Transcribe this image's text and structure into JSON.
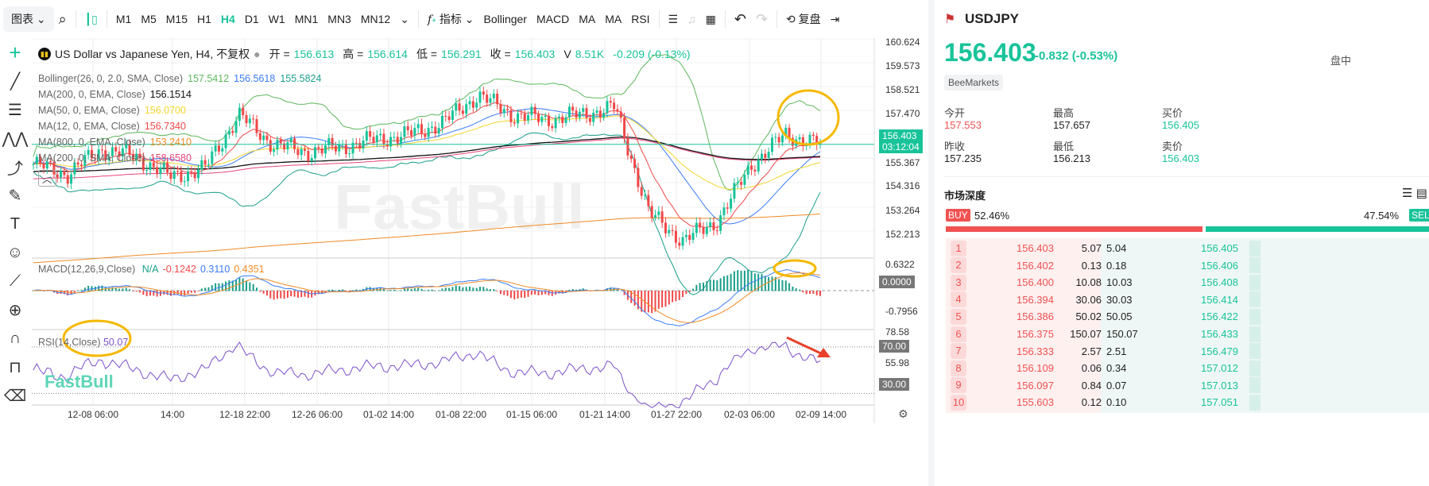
{
  "toolbar": {
    "chart_menu": "图表",
    "timeframes": [
      "M1",
      "M5",
      "M15",
      "H1",
      "H4",
      "D1",
      "W1",
      "MN1",
      "MN3",
      "MN12"
    ],
    "active_timeframe": "H4",
    "indicators_label": "指标",
    "quick_indicators": [
      "Bollinger",
      "MACD",
      "MA",
      "MA",
      "RSI"
    ],
    "replay_label": "复盘"
  },
  "chart_header": {
    "title": "US Dollar vs Japanese Yen, H4, 不复权",
    "open_label": "开 =",
    "open": "156.613",
    "high_label": "高 =",
    "high": "156.614",
    "low_label": "低 =",
    "low": "156.291",
    "close_label": "收 =",
    "close": "156.403",
    "volume_label": "V",
    "volume": "8.51K",
    "change": "-0.209 (-0.13%)"
  },
  "indicators": [
    {
      "name": "Bollinger(26, 0, 2.0, SMA, Close)",
      "values": [
        {
          "v": "157.5412",
          "color": "#5cb85c"
        },
        {
          "v": "156.5618",
          "color": "#3b7cf5"
        },
        {
          "v": "155.5824",
          "color": "#1a9e8a"
        }
      ]
    },
    {
      "name": "MA(200, 0, EMA, Close)",
      "values": [
        {
          "v": "156.1514",
          "color": "#111111"
        }
      ]
    },
    {
      "name": "MA(50, 0, EMA, Close)",
      "values": [
        {
          "v": "156.0700",
          "color": "#f2d72c"
        }
      ]
    },
    {
      "name": "MA(12, 0, EMA, Close)",
      "values": [
        {
          "v": "156.7340",
          "color": "#f04848"
        }
      ]
    },
    {
      "name": "MA(800, 0, EMA, Close)",
      "values": [
        {
          "v": "153.2410",
          "color": "#f08a24"
        }
      ]
    },
    {
      "name": "MA(200, 0, SMA, Close)",
      "values": [
        {
          "v": "158.6580",
          "color": "#e8457a"
        }
      ]
    }
  ],
  "macd": {
    "name": "MACD(12,26,9,Close)",
    "values": [
      {
        "v": "N/A",
        "color": "#1a9e8a"
      },
      {
        "v": "-0.1242",
        "color": "#f04848"
      },
      {
        "v": "0.3110",
        "color": "#3b7cf5"
      },
      {
        "v": "0.4351",
        "color": "#f08a24"
      }
    ],
    "axis": [
      "0.6322",
      "0.0000",
      "-0.7956"
    ]
  },
  "rsi": {
    "name": "RSI(14,Close)",
    "value": "50.07",
    "axis": [
      "78.58",
      "70.00",
      "55.98",
      "30.00"
    ]
  },
  "price_axis": [
    "160.624",
    "159.573",
    "158.521",
    "157.470",
    "155.367",
    "154.316",
    "153.264",
    "152.213"
  ],
  "last_price_tag": {
    "price": "156.403",
    "countdown": "03:12:04"
  },
  "time_axis": [
    "12-08 06:00",
    "14:00",
    "12-18 22:00",
    "12-26 06:00",
    "01-02 14:00",
    "01-08 22:00",
    "01-15 06:00",
    "01-21 14:00",
    "01-27 22:00",
    "02-03 06:00",
    "02-09 14:00"
  ],
  "watermark": "FastBull",
  "chart_data": {
    "type": "candlestick",
    "price_closes": [
      155.6,
      155.2,
      156.2,
      155.9,
      155.1,
      155.4,
      157.6,
      156.4,
      156.1,
      156.3,
      156.6,
      156.8,
      157.3,
      158.4,
      157.6,
      157.4,
      157.6,
      157.9,
      153.6,
      152.5,
      153.3,
      155.6,
      156.8,
      156.4
    ],
    "ylim": [
      151.8,
      160.7
    ]
  },
  "symbol": {
    "name": "USDJPY",
    "price": "156.403",
    "change": "-0.832",
    "change_pct": "(-0.53%)",
    "session": "盘中",
    "broker": "BeeMarkets"
  },
  "stats": [
    {
      "label": "今开",
      "value": "157.553",
      "color": "#f05252"
    },
    {
      "label": "最高",
      "value": "157.657",
      "color": "#222"
    },
    {
      "label": "买价",
      "value": "156.405",
      "color": "#19c39a"
    },
    {
      "label": "昨收",
      "value": "157.235",
      "color": "#222"
    },
    {
      "label": "最低",
      "value": "156.213",
      "color": "#222"
    },
    {
      "label": "卖价",
      "value": "156.403",
      "color": "#19c39a"
    }
  ],
  "depth": {
    "title": "市场深度",
    "buy_label": "BUY",
    "buy_pct": "52.46%",
    "sell_pct": "47.54%",
    "sell_label": "SELL",
    "buy_fraction": 0.5246,
    "rows": [
      [
        "1",
        "156.403",
        "5.07",
        "5.04",
        "156.405"
      ],
      [
        "2",
        "156.402",
        "0.13",
        "0.18",
        "156.406"
      ],
      [
        "3",
        "156.400",
        "10.08",
        "10.03",
        "156.408"
      ],
      [
        "4",
        "156.394",
        "30.06",
        "30.03",
        "156.414"
      ],
      [
        "5",
        "156.386",
        "50.02",
        "50.05",
        "156.422"
      ],
      [
        "6",
        "156.375",
        "150.07",
        "150.07",
        "156.433"
      ],
      [
        "7",
        "156.333",
        "2.57",
        "2.51",
        "156.479"
      ],
      [
        "8",
        "156.109",
        "0.06",
        "0.34",
        "157.012"
      ],
      [
        "9",
        "156.097",
        "0.84",
        "0.07",
        "157.013"
      ],
      [
        "10",
        "155.603",
        "0.12",
        "0.10",
        "157.051"
      ]
    ]
  }
}
